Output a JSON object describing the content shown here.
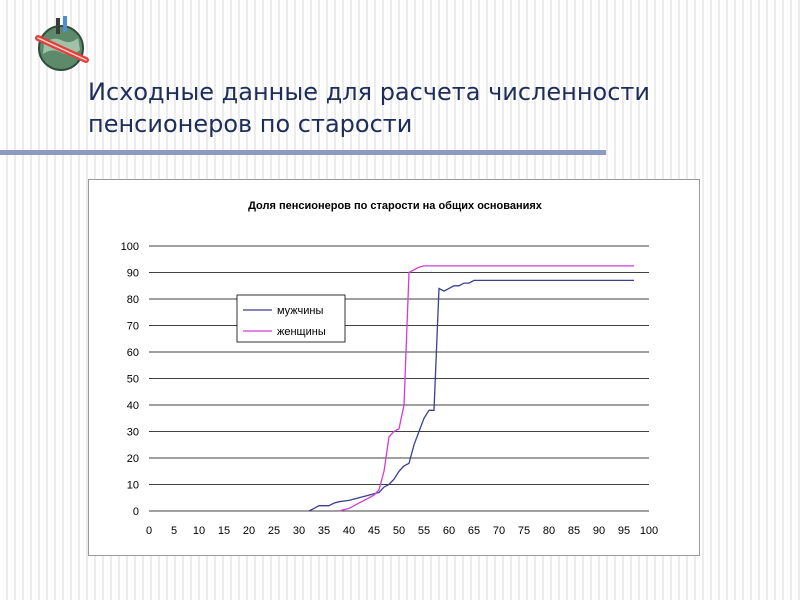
{
  "slide": {
    "title": "Исходные данные для расчета численности пенсионеров по старости"
  },
  "logo": {
    "icon": "globe-logo-icon"
  },
  "colors": {
    "title_text": "#1f2d5a",
    "rule": "#8c9bc0",
    "men_line": "#3b3f8f",
    "women_line": "#d23cd6",
    "gridline": "#000000"
  },
  "chart_data": {
    "type": "line",
    "title": "Доля пенсионеров по старости на общих основаниях",
    "xlabel": "",
    "ylabel": "",
    "xlim": [
      0,
      100
    ],
    "ylim": [
      0,
      100
    ],
    "x_ticks": [
      0,
      5,
      10,
      15,
      20,
      25,
      30,
      35,
      40,
      45,
      50,
      55,
      60,
      65,
      70,
      75,
      80,
      85,
      90,
      95,
      100
    ],
    "y_ticks": [
      0,
      10,
      20,
      30,
      40,
      50,
      60,
      70,
      80,
      90,
      100
    ],
    "grid": "horizontal",
    "legend_position": "upper-left",
    "series": [
      {
        "name": "мужчины",
        "color": "#3b3f8f",
        "points": [
          [
            32,
            0
          ],
          [
            33,
            1
          ],
          [
            34,
            2
          ],
          [
            35,
            2
          ],
          [
            36,
            2
          ],
          [
            37,
            3
          ],
          [
            38,
            3.5
          ],
          [
            40,
            4
          ],
          [
            42,
            5
          ],
          [
            44,
            6
          ],
          [
            46,
            7
          ],
          [
            47,
            9
          ],
          [
            48,
            10
          ],
          [
            49,
            12
          ],
          [
            50,
            15
          ],
          [
            51,
            17
          ],
          [
            52,
            18
          ],
          [
            53,
            25
          ],
          [
            54,
            30
          ],
          [
            55,
            35
          ],
          [
            56,
            38
          ],
          [
            57,
            38
          ],
          [
            58,
            84
          ],
          [
            59,
            83
          ],
          [
            60,
            84
          ],
          [
            61,
            85
          ],
          [
            62,
            85
          ],
          [
            63,
            86
          ],
          [
            64,
            86
          ],
          [
            65,
            87
          ],
          [
            66,
            87
          ],
          [
            70,
            87
          ],
          [
            80,
            87
          ],
          [
            90,
            87
          ],
          [
            97,
            87
          ]
        ]
      },
      {
        "name": "женщины",
        "color": "#d23cd6",
        "points": [
          [
            38,
            0
          ],
          [
            40,
            1
          ],
          [
            42,
            3
          ],
          [
            43,
            4
          ],
          [
            44,
            5
          ],
          [
            45,
            6
          ],
          [
            46,
            8
          ],
          [
            47,
            15
          ],
          [
            48,
            28
          ],
          [
            49,
            30
          ],
          [
            50,
            31
          ],
          [
            51,
            40
          ],
          [
            52,
            90
          ],
          [
            53,
            91
          ],
          [
            54,
            92
          ],
          [
            55,
            92.5
          ],
          [
            56,
            92.5
          ],
          [
            60,
            92.5
          ],
          [
            70,
            92.5
          ],
          [
            80,
            92.5
          ],
          [
            90,
            92.5
          ],
          [
            97,
            92.5
          ]
        ]
      }
    ]
  }
}
